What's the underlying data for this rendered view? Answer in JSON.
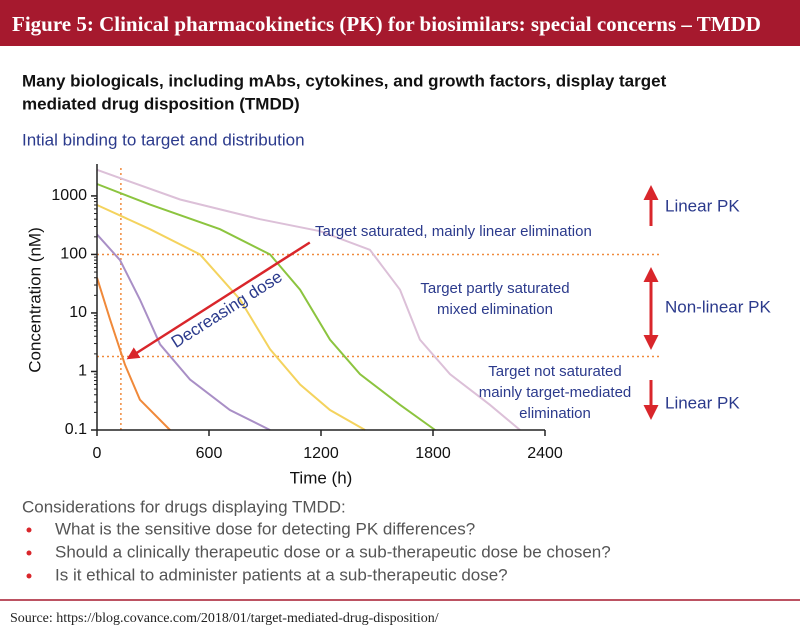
{
  "header": {
    "title": "Figure 5: Clinical pharmacokinetics (PK) for biosimilars: special concerns – TMDD"
  },
  "subtitle": [
    "Many biologicals, including mAbs, cytokines, and growth factors, display target",
    "mediated drug disposition (TMDD)"
  ],
  "chart_data": {
    "type": "line",
    "title": "Intial binding to target and distribution",
    "xlabel": "Time (h)",
    "ylabel": "Concentration (nM)",
    "xlim": [
      0,
      2400
    ],
    "xticks": [
      0,
      600,
      1200,
      1800,
      2400
    ],
    "ylim": [
      0.1,
      3000
    ],
    "yticks": [
      0.1,
      1,
      10,
      100,
      1000
    ],
    "log_y": true,
    "series": [
      {
        "color": "#dcc0d8",
        "x": [
          0,
          445,
          873,
          1195,
          1462,
          1623,
          1730,
          1891,
          2105,
          2266
        ],
        "values": [
          2800,
          870,
          400,
          250,
          120,
          25,
          3.5,
          0.9,
          0.27,
          0.1
        ]
      },
      {
        "color": "#8cc43f",
        "x": [
          0,
          284,
          659,
          927,
          1088,
          1248,
          1409,
          1623,
          1811
        ],
        "values": [
          1600,
          710,
          270,
          100,
          25,
          3.5,
          0.9,
          0.27,
          0.1
        ]
      },
      {
        "color": "#f4d35e",
        "x": [
          0,
          284,
          552,
          766,
          927,
          1088,
          1248,
          1436
        ],
        "values": [
          700,
          270,
          100,
          17,
          2.4,
          0.6,
          0.22,
          0.1
        ]
      },
      {
        "color": "#a98fc6",
        "x": [
          0,
          123,
          230,
          338,
          498,
          712,
          927
        ],
        "values": [
          220,
          80,
          17,
          2.9,
          0.73,
          0.22,
          0.1
        ]
      },
      {
        "color": "#f0893a",
        "x": [
          0,
          70,
          150,
          230,
          391
        ],
        "values": [
          40,
          7.7,
          1.3,
          0.33,
          0.1
        ]
      }
    ],
    "hlines": [
      100,
      1.8
    ],
    "vlines": [
      128
    ],
    "ref_color": "#f08a3c",
    "arrow": {
      "x": [
        1140,
        170
      ],
      "y": [
        160,
        1.7
      ],
      "color": "#d9262b",
      "label": "Decreasing dose"
    },
    "annotations": {
      "saturated": [
        "Target saturated, mainly linear elimination"
      ],
      "partly": [
        "Target partly saturated",
        "mixed elimination"
      ],
      "not_saturated": [
        "Target not saturated",
        "mainly target-mediated",
        "elimination"
      ]
    }
  },
  "regions": [
    "Linear PK",
    "Non-linear PK",
    "Linear PK"
  ],
  "considerations": {
    "heading": "Considerations for drugs displaying TMDD:",
    "items": [
      "What is the sensitive dose for detecting PK differences?",
      "Should a clinically therapeutic dose or a sub-therapeutic dose be chosen?",
      "Is it ethical to administer patients at a sub-therapeutic dose?"
    ]
  },
  "source": "Source: https://blog.covance.com/2018/01/target-mediated-drug-disposition/"
}
